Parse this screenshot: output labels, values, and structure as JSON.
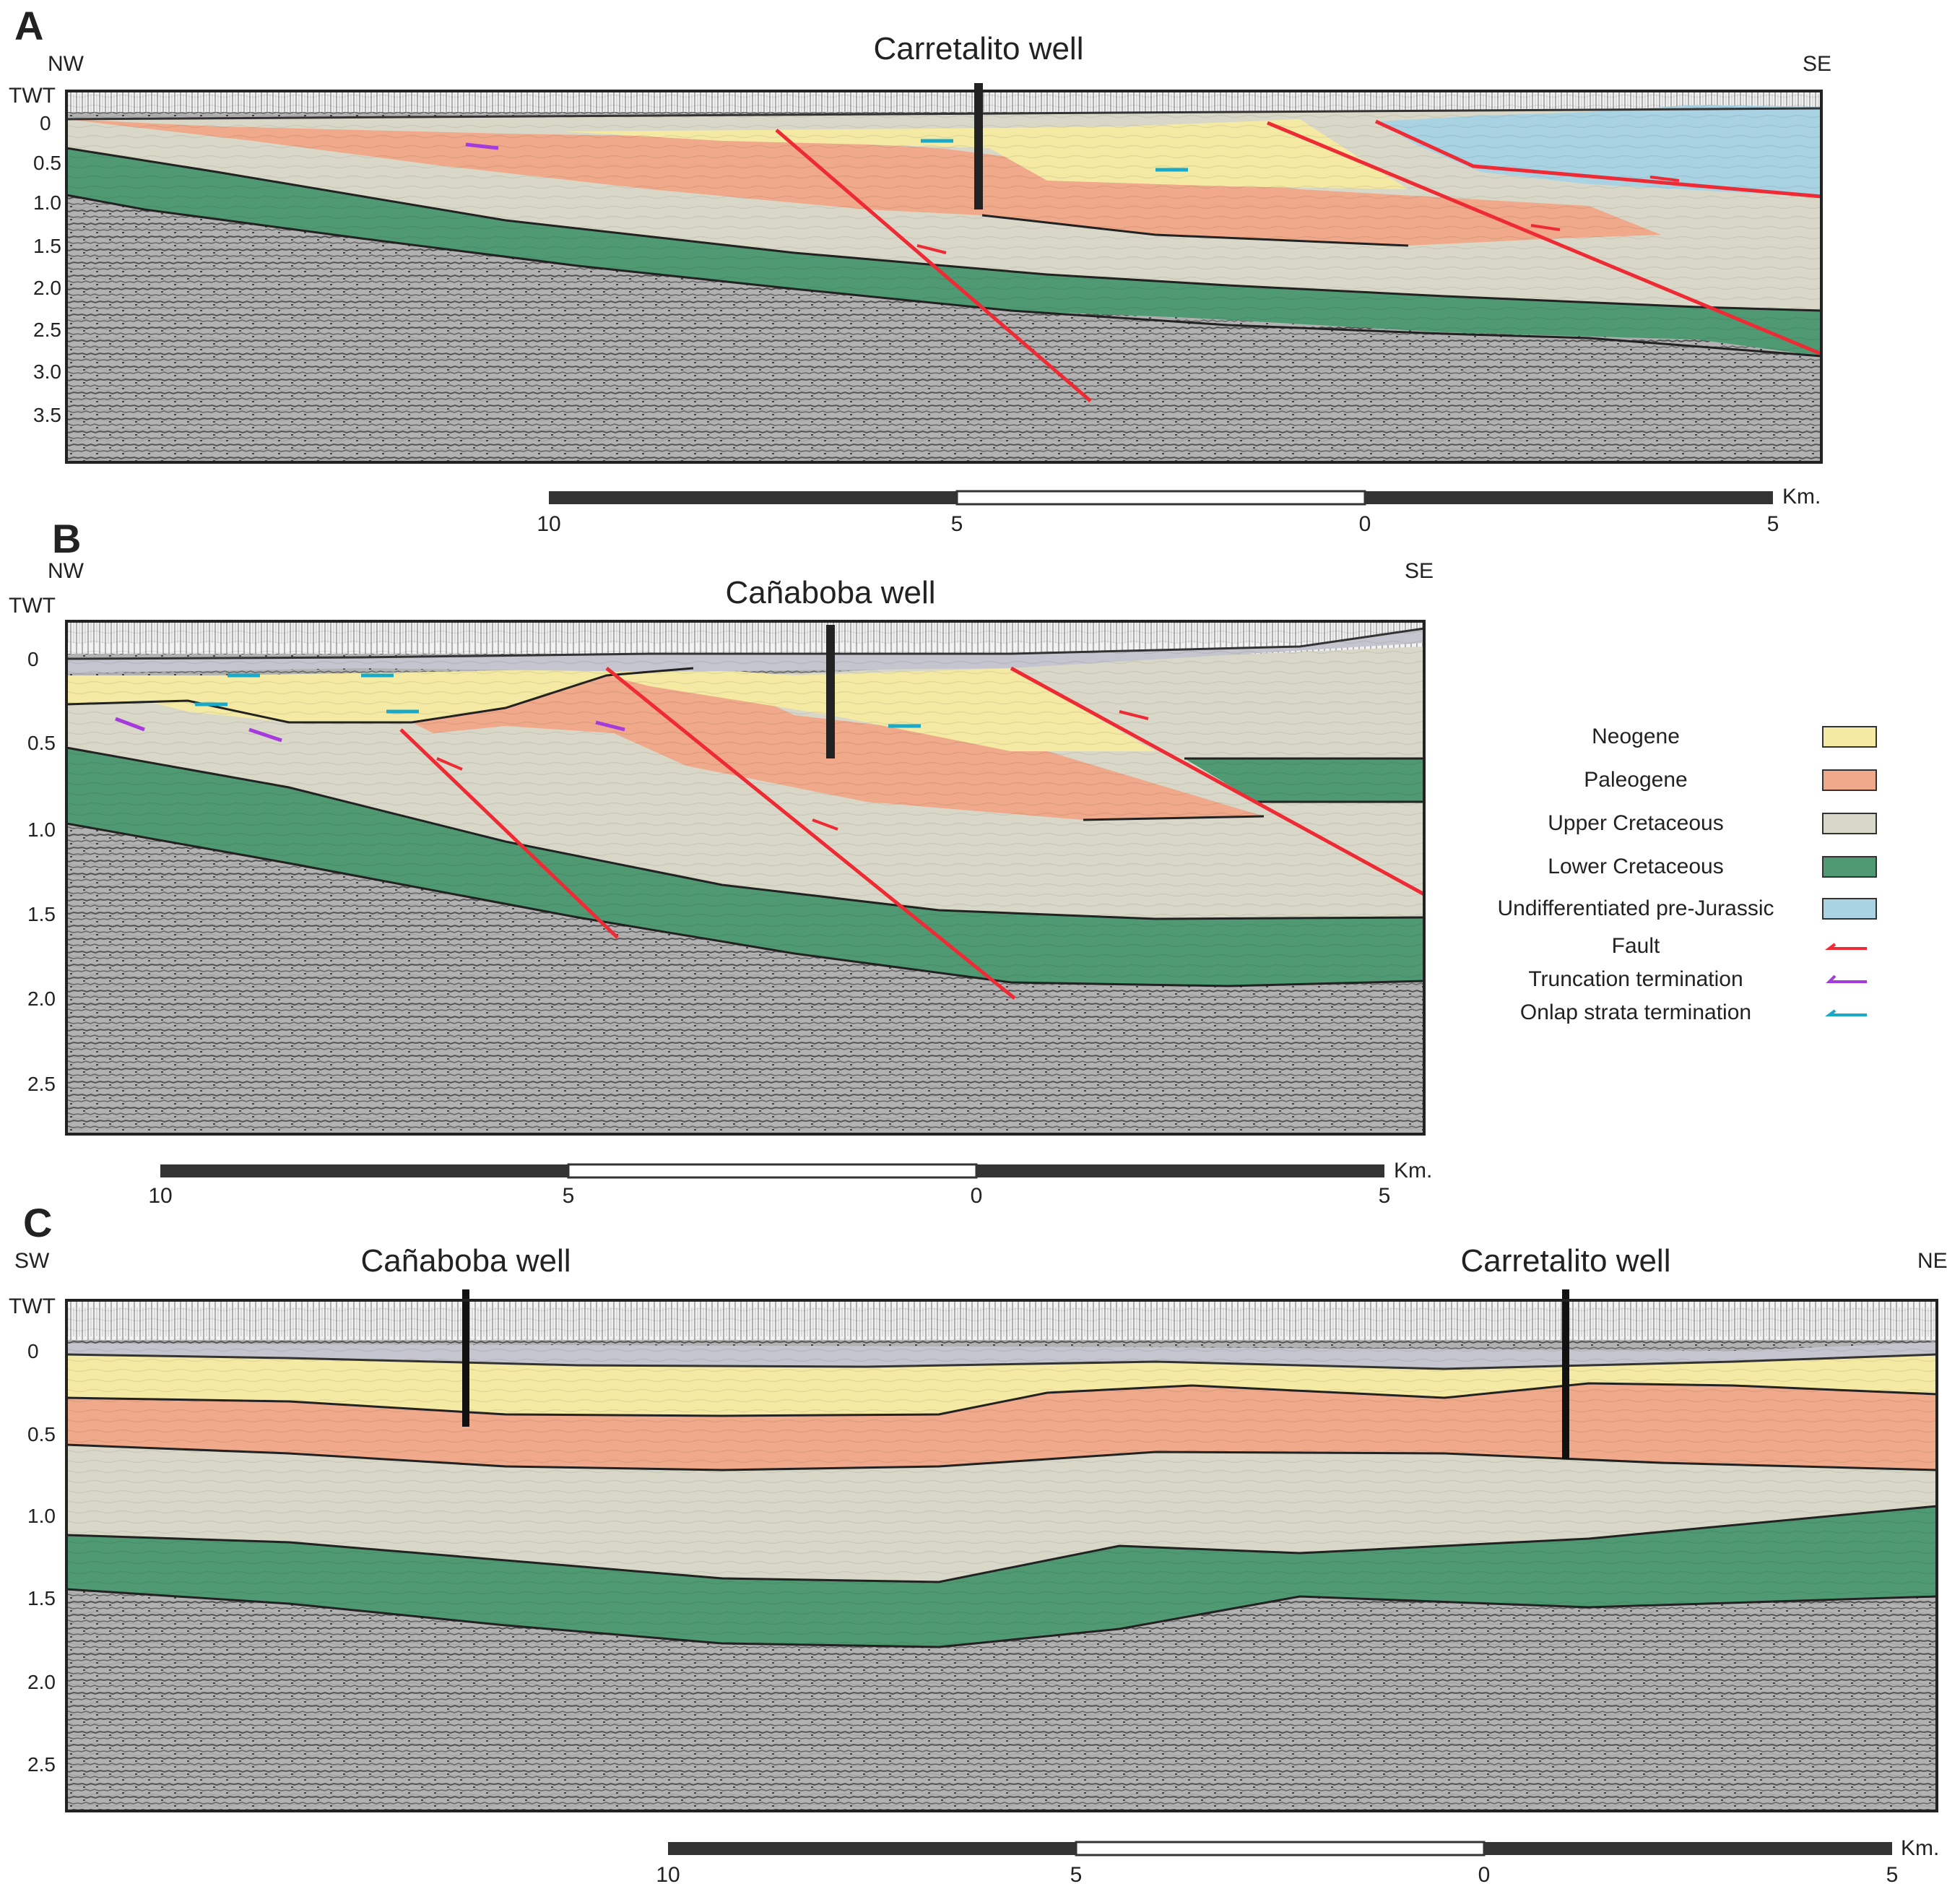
{
  "panels": [
    {
      "id": "A",
      "left_dir": "NW",
      "right_dir": "SE",
      "axis_label": "TWT",
      "ticks": [
        "0",
        "0.5",
        "1.0",
        "1.5",
        "2.0",
        "2.5",
        "3.0",
        "3.5"
      ],
      "wells": [
        "Carretalito well"
      ],
      "scale": {
        "labels": [
          "10",
          "5",
          "0",
          "5"
        ],
        "unit": "Km."
      }
    },
    {
      "id": "B",
      "left_dir": "NW",
      "right_dir": "SE",
      "axis_label": "TWT",
      "ticks": [
        "0",
        "0.5",
        "1.0",
        "1.5",
        "2.0",
        "2.5"
      ],
      "wells": [
        "Cañaboba well"
      ],
      "scale": {
        "labels": [
          "10",
          "5",
          "0",
          "5"
        ],
        "unit": "Km."
      }
    },
    {
      "id": "C",
      "left_dir": "SW",
      "right_dir": "NE",
      "axis_label": "TWT",
      "ticks": [
        "0",
        "0.5",
        "1.0",
        "1.5",
        "2.0",
        "2.5"
      ],
      "wells": [
        "Cañaboba well",
        "Carretalito well"
      ],
      "scale": {
        "labels": [
          "10",
          "5",
          "0",
          "5"
        ],
        "unit": "Km."
      }
    }
  ],
  "legend": [
    {
      "label": "Neogene",
      "kind": "swatch",
      "color": "#f4eaa4"
    },
    {
      "label": "Paleogene",
      "kind": "swatch",
      "color": "#f0a98a"
    },
    {
      "label": "Upper Cretaceous",
      "kind": "swatch",
      "color": "#d9d8c8"
    },
    {
      "label": "Lower Cretaceous",
      "kind": "swatch",
      "color": "#4f9a72"
    },
    {
      "label": "Undifferentiated pre-Jurassic",
      "kind": "swatch",
      "color": "#a9d3e3"
    },
    {
      "label": "Fault",
      "kind": "arrow",
      "color": "#ee2b34"
    },
    {
      "label": "Truncation termination",
      "kind": "arrow",
      "color": "#a53bdc"
    },
    {
      "label": "Onlap strata termination",
      "kind": "arrow",
      "color": "#1aa9c9"
    }
  ],
  "colors": {
    "neogene": "#f4eaa4",
    "paleogene": "#f0a98a",
    "upper_cretaceous": "#d9d8c8",
    "lower_cretaceous": "#4f9a72",
    "pre_jurassic": "#a9d3e3",
    "basement": "#a8a8a8",
    "topsoil": "#c5c5cf",
    "fault": "#ee2b34",
    "truncation": "#a53bdc",
    "onlap": "#1aa9c9"
  }
}
